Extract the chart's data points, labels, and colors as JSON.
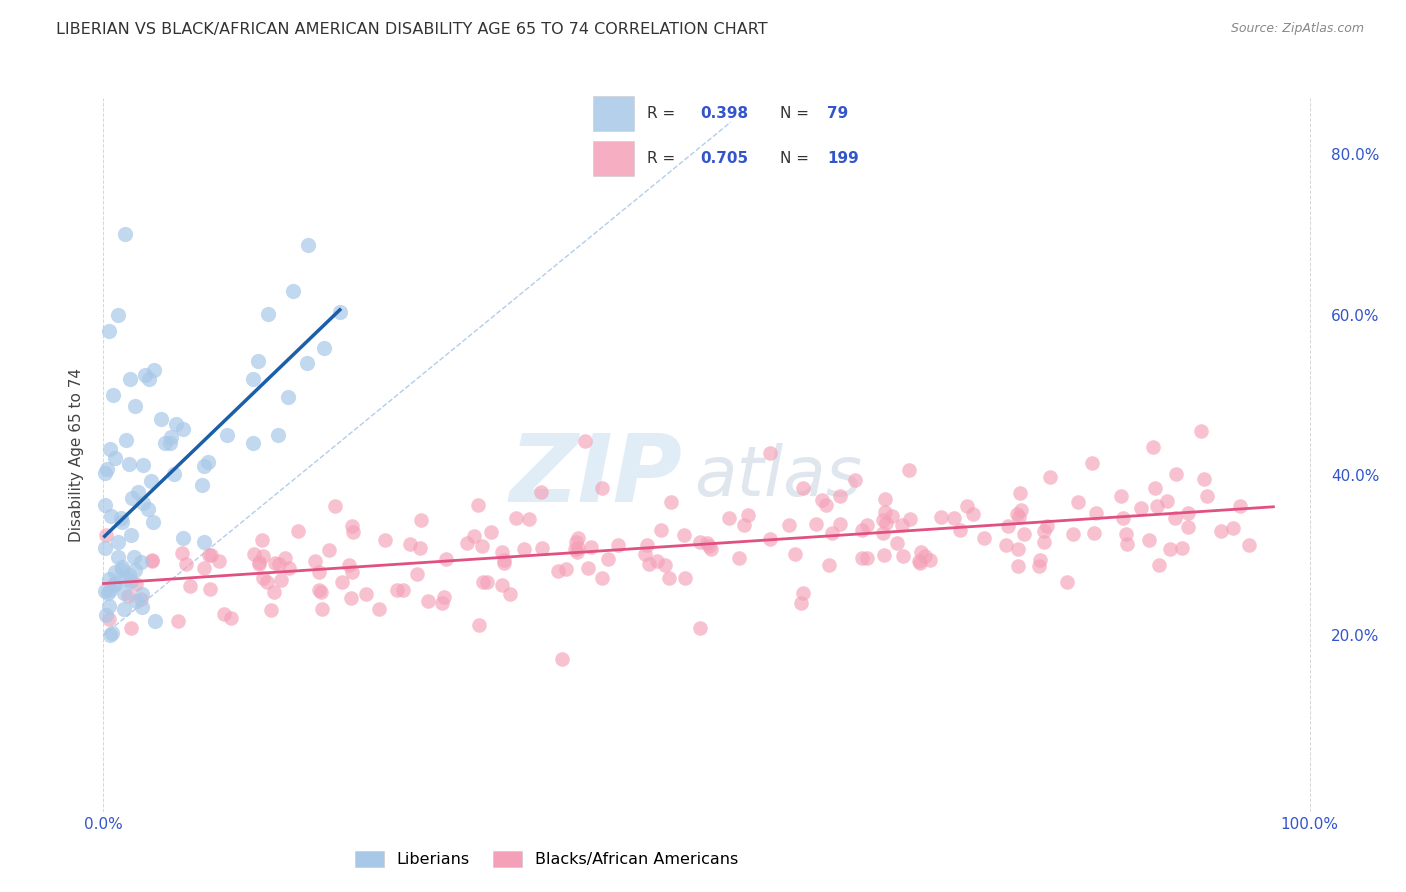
{
  "title": "LIBERIAN VS BLACK/AFRICAN AMERICAN DISABILITY AGE 65 TO 74 CORRELATION CHART",
  "source": "Source: ZipAtlas.com",
  "ylabel": "Disability Age 65 to 74",
  "watermark_zip": "ZIP",
  "watermark_atlas": "atlas",
  "liberian_R": 0.398,
  "liberian_N": 79,
  "black_R": 0.705,
  "black_N": 199,
  "liberian_color": "#a8c8e8",
  "liberian_edge_color": "#a8c8e8",
  "liberian_line_color": "#1a5fa8",
  "black_color": "#f4a0b8",
  "black_edge_color": "#f4a0b8",
  "black_line_color": "#e05080",
  "diagonal_color": "#aac8e8",
  "background_color": "#ffffff",
  "grid_color": "#cccccc",
  "title_color": "#333333",
  "axis_tick_color": "#3355cc",
  "ylabel_color": "#444444",
  "source_color": "#888888",
  "legend_border_color": "#cccccc",
  "seed": 12345
}
